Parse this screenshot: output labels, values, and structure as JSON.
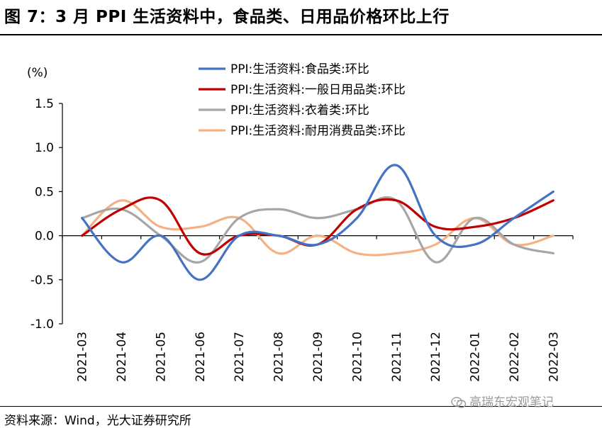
{
  "header": {
    "title": "图 7：3 月 PPI 生活资料中，食品类、日用品价格环比上行"
  },
  "footer": {
    "source": "资料来源：Wind，光大证券研究所",
    "watermark": "高瑞东宏观笔记"
  },
  "colors": {
    "food": "#4472C4",
    "daily": "#C00000",
    "clothing": "#A6A6A6",
    "durable": "#F4B183"
  },
  "chart_data": {
    "type": "line",
    "title": "",
    "ylabel": "(%)",
    "xlabel": "",
    "ylim": [
      -1.0,
      1.5
    ],
    "yticks": [
      "1.5",
      "1.0",
      "0.5",
      "0.0",
      "-0.5",
      "-1.0"
    ],
    "ytick_values": [
      1.5,
      1.0,
      0.5,
      0.0,
      -0.5,
      -1.0
    ],
    "categories": [
      "2021-03",
      "2021-04",
      "2021-05",
      "2021-06",
      "2021-07",
      "2021-08",
      "2021-09",
      "2021-10",
      "2021-11",
      "2021-12",
      "2022-01",
      "2022-02",
      "2022-03"
    ],
    "legend_position": "top-right",
    "grid": false,
    "series": [
      {
        "name": "PPI:生活资料:食品类:环比",
        "color_key": "food",
        "values": [
          0.2,
          -0.3,
          0.0,
          -0.5,
          0.0,
          0.0,
          -0.1,
          0.2,
          0.8,
          0.0,
          -0.1,
          0.2,
          0.5
        ]
      },
      {
        "name": "PPI:生活资料:一般日用品类:环比",
        "color_key": "daily",
        "values": [
          0.0,
          0.3,
          0.4,
          -0.2,
          0.0,
          0.0,
          -0.1,
          0.3,
          0.4,
          0.1,
          0.1,
          0.2,
          0.4
        ]
      },
      {
        "name": "PPI:生活资料:衣着类:环比",
        "color_key": "clothing",
        "values": [
          0.2,
          0.3,
          0.0,
          -0.3,
          0.2,
          0.3,
          0.2,
          0.3,
          0.4,
          -0.3,
          0.2,
          -0.1,
          -0.2
        ]
      },
      {
        "name": "PPI:生活资料:耐用消费品类:环比",
        "color_key": "durable",
        "values": [
          0.0,
          0.4,
          0.1,
          0.1,
          0.2,
          -0.2,
          0.0,
          -0.2,
          -0.2,
          -0.1,
          0.2,
          -0.1,
          0.0
        ]
      }
    ]
  }
}
